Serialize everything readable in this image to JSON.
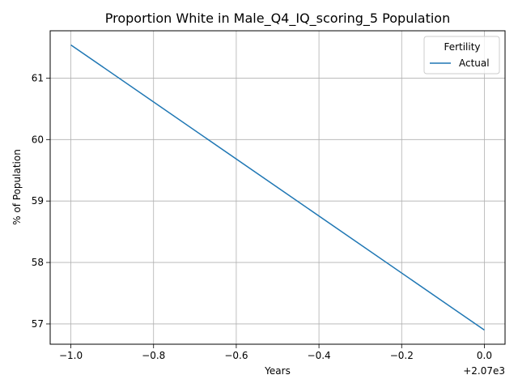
{
  "chart_data": {
    "type": "line",
    "title": "Proportion White in Male_Q4_IQ_scoring_5 Population",
    "xlabel": "Years",
    "ylabel": "% of Population",
    "x_offset_label": "+2.07e3",
    "xlim": [
      -1.05,
      0.05
    ],
    "ylim": [
      56.67,
      61.77
    ],
    "x_ticks": [
      -1.0,
      -0.8,
      -0.6,
      -0.4,
      -0.2,
      0.0
    ],
    "x_tick_labels": [
      "−1.0",
      "−0.8",
      "−0.6",
      "−0.4",
      "−0.2",
      "0.0"
    ],
    "y_ticks": [
      57,
      58,
      59,
      60,
      61
    ],
    "y_tick_labels": [
      "57",
      "58",
      "59",
      "60",
      "61"
    ],
    "grid": true,
    "legend": {
      "title": "Fertility",
      "placement": "top-right"
    },
    "series": [
      {
        "name": "Actual",
        "color": "#1f77b4",
        "x": [
          -1.0,
          0.0
        ],
        "y": [
          61.54,
          56.9
        ]
      }
    ]
  }
}
